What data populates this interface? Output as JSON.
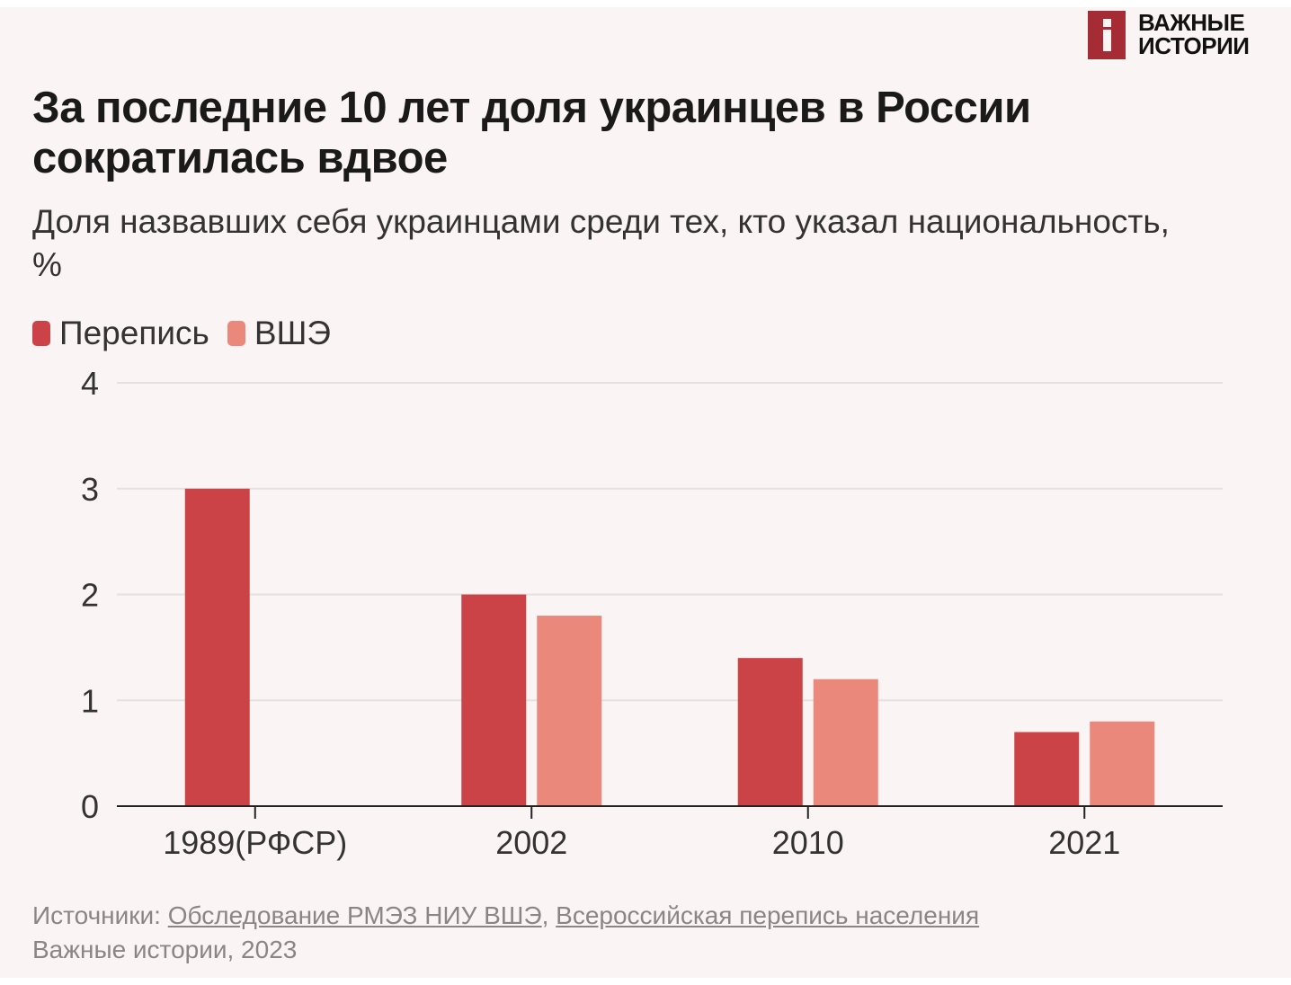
{
  "brand": {
    "line1": "ВАЖНЫЕ",
    "line2": "ИСТОРИИ",
    "color": "#a52c34"
  },
  "header": {
    "title": "За последние 10 лет доля украинцев в России сократилась вдвое",
    "subtitle": "Доля назвавших себя украинцами среди тех, кто указал национальность, %"
  },
  "chart_data": {
    "type": "bar",
    "categories": [
      "1989(РФСР)",
      "2002",
      "2010",
      "2021"
    ],
    "series": [
      {
        "name": "Перепись",
        "color": "#cc4347",
        "values": [
          3.0,
          2.0,
          1.4,
          0.7
        ]
      },
      {
        "name": "ВШЭ",
        "color": "#ea887b",
        "values": [
          null,
          1.8,
          1.2,
          0.8
        ]
      }
    ],
    "y_ticks": [
      "0",
      "1",
      "2",
      "3",
      "4"
    ],
    "ylim": [
      0,
      4
    ],
    "grid": true,
    "legend_position": "top-left"
  },
  "footer": {
    "prefix": "Источники: ",
    "source1": "Обследование РМЭЗ НИУ ВШЭ",
    "separator": ", ",
    "source2": "Всероссийская перепись населения",
    "credit": "Важные истории, 2023"
  }
}
